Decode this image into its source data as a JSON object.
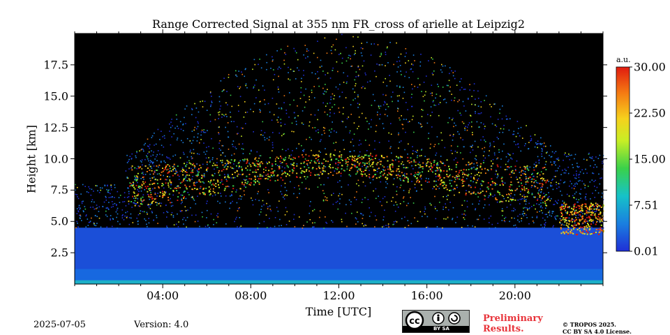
{
  "chart_data": {
    "type": "heatmap",
    "title": "Range Corrected Signal at 355 nm FR_cross of arielle at Leipzig2",
    "xlabel": "Time [UTC]",
    "ylabel": "Height [km]",
    "x_range_hours": [
      0,
      24
    ],
    "ylim_km": [
      0,
      20
    ],
    "x_ticks": [
      "04:00",
      "08:00",
      "12:00",
      "16:00",
      "20:00"
    ],
    "x_tick_hours": [
      4,
      8,
      12,
      16,
      20
    ],
    "y_ticks": [
      "2.5",
      "5.0",
      "7.5",
      "10.0",
      "12.5",
      "15.0",
      "17.5"
    ],
    "y_tick_values": [
      2.5,
      5.0,
      7.5,
      10.0,
      12.5,
      15.0,
      17.5
    ],
    "colorbar": {
      "unit": "a.u.",
      "min": 0.01,
      "max": 30.0,
      "ticks": [
        "0.01",
        "7.51",
        "15.00",
        "22.50",
        "30.00"
      ],
      "tick_values": [
        0.01,
        7.51,
        15.0,
        22.5,
        30.0
      ],
      "colormap": [
        "#1f2fd6",
        "#1a7fe0",
        "#16c2c8",
        "#3ad14a",
        "#c8ee25",
        "#f6d11d",
        "#f57a12",
        "#e01b10"
      ]
    },
    "features": [
      {
        "name": "boundary layer",
        "height_km": [
          0,
          4.5
        ],
        "level": "moderate"
      },
      {
        "name": "cirrus layer",
        "start_h": 2.4,
        "end_h": 21.5,
        "base_km": 5.0,
        "top_km": 11.5,
        "level": "high"
      },
      {
        "name": "low cloud",
        "start_h": 22.0,
        "end_h": 24.0,
        "height_km": [
          4.0,
          6.5
        ],
        "level": "high"
      }
    ]
  },
  "footer": {
    "date": "2025-07-05",
    "version": "Version: 4.0",
    "prelim_line1": "Preliminary",
    "prelim_line2": "Results.",
    "license_line1": "© TROPOS 2025.",
    "license_line2": "CC BY SA 4.0 License.",
    "cc_badge": "BY  SA"
  }
}
